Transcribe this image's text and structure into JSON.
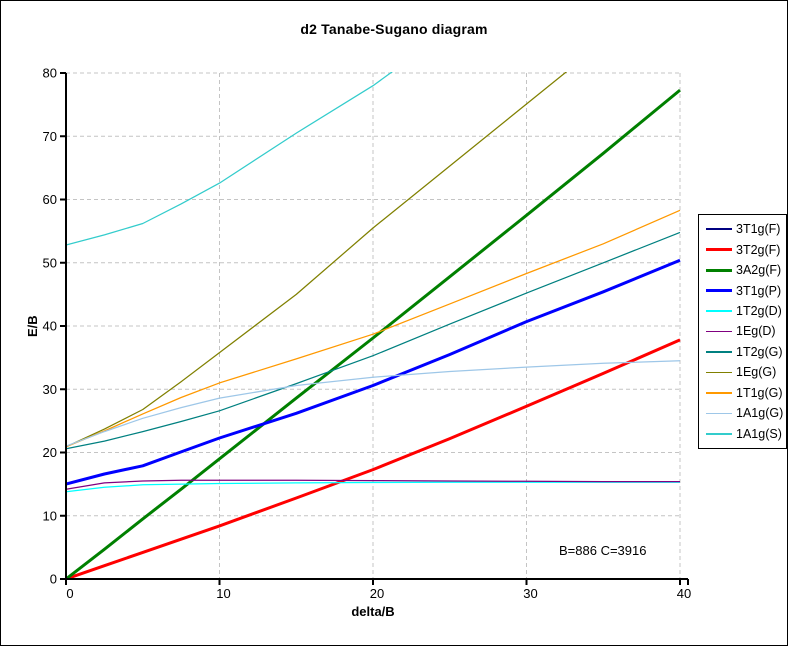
{
  "chart_data": {
    "type": "line",
    "title": "d2 Tanabe-Sugano diagram",
    "xlabel": "delta/B",
    "ylabel": "E/B",
    "annotation": "B=886 C=3916",
    "xlim": [
      0,
      40
    ],
    "ylim": [
      0,
      80
    ],
    "xticks": [
      0,
      10,
      20,
      30,
      40
    ],
    "yticks": [
      0,
      10,
      20,
      30,
      40,
      50,
      60,
      70,
      80
    ],
    "grid": {
      "style": "dashed",
      "color": "#c4c4c4",
      "x": true,
      "y": true
    },
    "legend_position": "right",
    "axis_color": "#000000",
    "x": [
      0,
      2.5,
      5,
      7.5,
      10,
      15,
      20,
      25,
      30,
      35,
      40
    ],
    "series": [
      {
        "name": "3T1g(F)",
        "color": "#000080",
        "thick": false,
        "values": [
          0,
          0,
          0,
          0,
          0,
          0,
          0,
          0,
          0,
          0,
          0
        ]
      },
      {
        "name": "3T2g(F)",
        "color": "#ff0000",
        "thick": true,
        "values": [
          0,
          2.1,
          4.2,
          6.3,
          8.4,
          12.8,
          17.3,
          22.2,
          27.3,
          32.5,
          37.8
        ]
      },
      {
        "name": "3A2g(F)",
        "color": "#008000",
        "thick": true,
        "values": [
          0,
          4.7,
          9.5,
          14.2,
          19.0,
          28.6,
          38.1,
          47.8,
          57.5,
          67.3,
          77.3
        ]
      },
      {
        "name": "3T1g(P)",
        "color": "#0000ff",
        "thick": true,
        "values": [
          15.0,
          16.6,
          17.9,
          20.1,
          22.3,
          26.2,
          30.6,
          35.5,
          40.7,
          45.4,
          50.4
        ]
      },
      {
        "name": "1T2g(D)",
        "color": "#00ffff",
        "thick": false,
        "values": [
          13.8,
          14.5,
          14.9,
          15.0,
          15.1,
          15.2,
          15.25,
          15.3,
          15.3,
          15.3,
          15.3
        ]
      },
      {
        "name": "1Eg(D)",
        "color": "#800080",
        "thick": false,
        "values": [
          14.2,
          15.2,
          15.5,
          15.6,
          15.6,
          15.6,
          15.55,
          15.5,
          15.45,
          15.4,
          15.4
        ]
      },
      {
        "name": "1T2g(G)",
        "color": "#008080",
        "thick": false,
        "values": [
          20.6,
          21.8,
          23.3,
          24.9,
          26.6,
          30.9,
          35.3,
          40.3,
          45.2,
          50.0,
          54.8
        ]
      },
      {
        "name": "1Eg(G)",
        "color": "#808000",
        "thick": false,
        "values": [
          20.9,
          23.7,
          26.8,
          31.2,
          35.8,
          45.0,
          55.5,
          65.3,
          75.1,
          84.9,
          94.7
        ]
      },
      {
        "name": "1T1g(G)",
        "color": "#ff9900",
        "thick": false,
        "values": [
          20.9,
          23.4,
          26.1,
          28.7,
          31.0,
          34.8,
          38.7,
          43.5,
          48.3,
          53.0,
          58.3
        ]
      },
      {
        "name": "1A1g(G)",
        "color": "#9ec7e8",
        "thick": false,
        "values": [
          21.0,
          23.3,
          25.4,
          27.1,
          28.6,
          30.6,
          31.9,
          32.8,
          33.5,
          34.1,
          34.5
        ]
      },
      {
        "name": "1A1g(S)",
        "color": "#33cccc",
        "thick": false,
        "values": [
          52.8,
          54.4,
          56.2,
          59.3,
          62.6,
          70.5,
          78.0,
          86.8,
          95.6,
          104.4,
          113.2
        ]
      }
    ],
    "clipped_above_ylim": [
      "1Eg(G)",
      "1A1g(S)"
    ]
  }
}
